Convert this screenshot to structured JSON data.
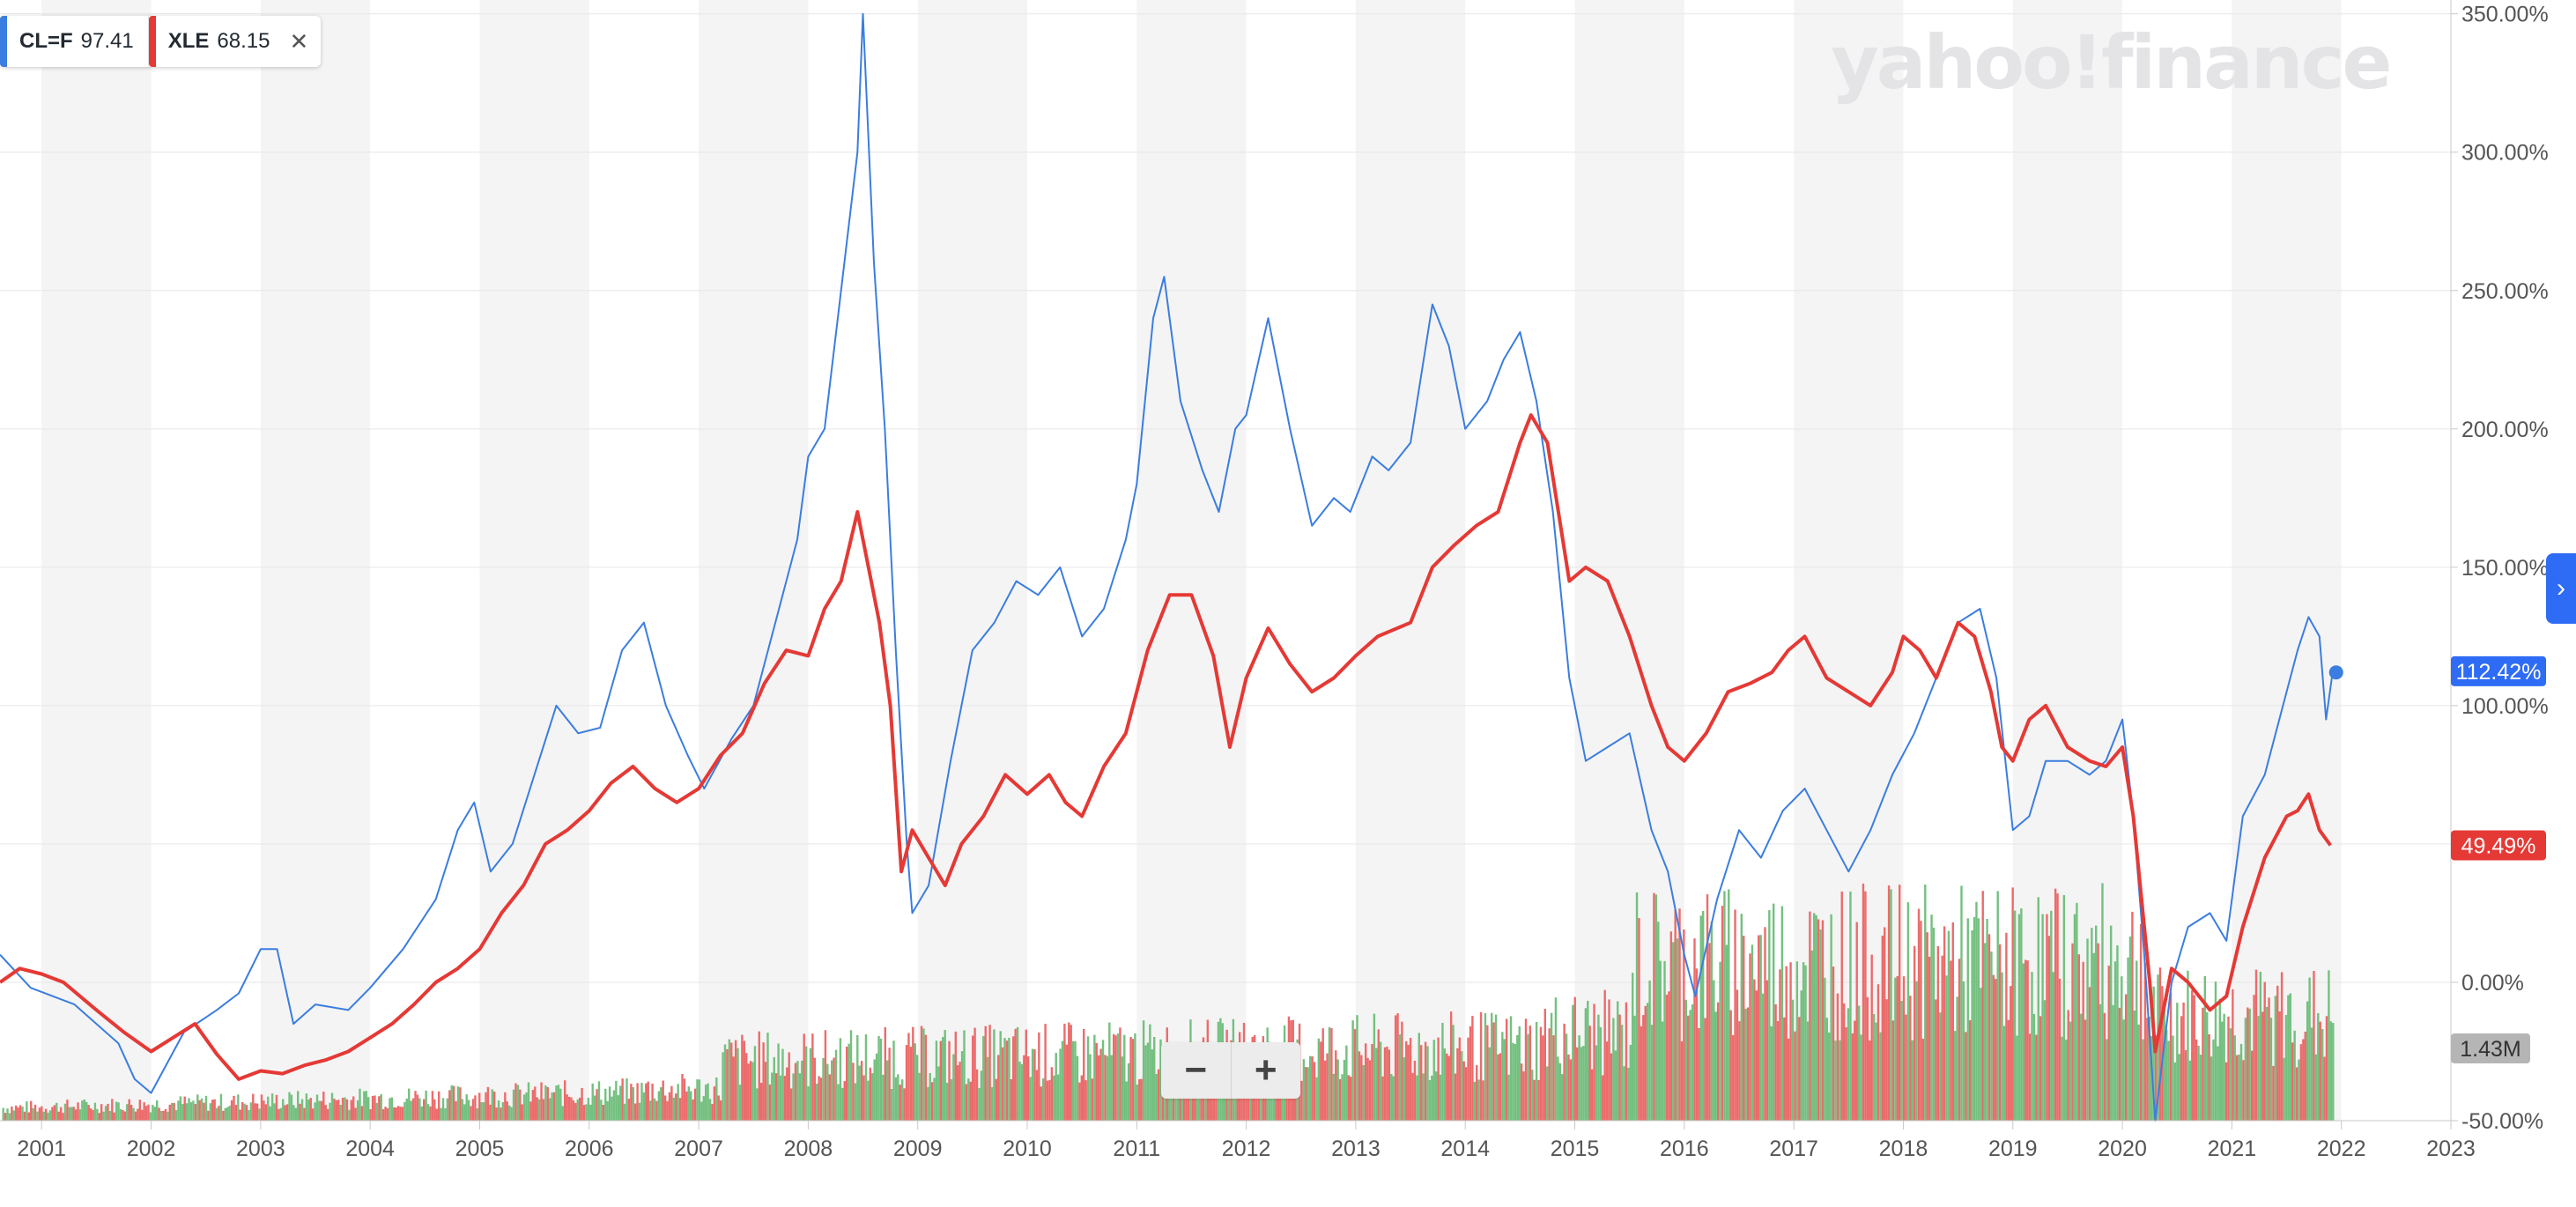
{
  "legend": [
    {
      "symbol": "CL=F",
      "value": "97.41",
      "color": "#3b7de0"
    },
    {
      "symbol": "XLE",
      "value": "68.15",
      "color": "#e53935",
      "close_icon": "close-icon"
    }
  ],
  "watermark": "yahoo!finance",
  "zoom": {
    "minus": "−",
    "plus": "+"
  },
  "expand_icon": "›",
  "colors": {
    "grid": "#e6e6e6",
    "band": "#f4f4f4",
    "axis_text": "#555555",
    "volume_up": "#74c080",
    "volume_down": "#ec6b6b"
  },
  "chart_data": {
    "type": "line",
    "x_ticks": [
      "2001",
      "2002",
      "2003",
      "2004",
      "2005",
      "2006",
      "2007",
      "2008",
      "2009",
      "2010",
      "2011",
      "2012",
      "2013",
      "2014",
      "2015",
      "2016",
      "2017",
      "2018",
      "2019",
      "2020",
      "2021",
      "2022",
      "2023"
    ],
    "y_ticks": [
      "350.00%",
      "300.00%",
      "250.00%",
      "200.00%",
      "150.00%",
      "100.00%",
      "0.00%",
      "-50.00%"
    ],
    "ylim": [
      -50,
      355
    ],
    "xlim": [
      2000.62,
      2023.0
    ],
    "series": [
      {
        "name": "CL=F",
        "color": "#3b7de0",
        "width": 2,
        "points": [
          [
            2000.62,
            10
          ],
          [
            2000.9,
            -2
          ],
          [
            2001.3,
            -8
          ],
          [
            2001.7,
            -22
          ],
          [
            2001.85,
            -35
          ],
          [
            2002.0,
            -40
          ],
          [
            2002.3,
            -18
          ],
          [
            2002.6,
            -10
          ],
          [
            2002.8,
            -4
          ],
          [
            2003.0,
            12
          ],
          [
            2003.15,
            12
          ],
          [
            2003.3,
            -15
          ],
          [
            2003.5,
            -8
          ],
          [
            2003.8,
            -10
          ],
          [
            2004.0,
            -2
          ],
          [
            2004.3,
            12
          ],
          [
            2004.6,
            30
          ],
          [
            2004.8,
            55
          ],
          [
            2004.95,
            65
          ],
          [
            2005.1,
            40
          ],
          [
            2005.3,
            50
          ],
          [
            2005.5,
            75
          ],
          [
            2005.7,
            100
          ],
          [
            2005.9,
            90
          ],
          [
            2006.1,
            92
          ],
          [
            2006.3,
            120
          ],
          [
            2006.5,
            130
          ],
          [
            2006.7,
            100
          ],
          [
            2006.9,
            82
          ],
          [
            2007.05,
            70
          ],
          [
            2007.3,
            88
          ],
          [
            2007.5,
            100
          ],
          [
            2007.7,
            130
          ],
          [
            2007.9,
            160
          ],
          [
            2008.0,
            190
          ],
          [
            2008.15,
            200
          ],
          [
            2008.3,
            250
          ],
          [
            2008.45,
            300
          ],
          [
            2008.5,
            350
          ],
          [
            2008.6,
            260
          ],
          [
            2008.7,
            200
          ],
          [
            2008.8,
            120
          ],
          [
            2008.9,
            50
          ],
          [
            2008.95,
            25
          ],
          [
            2009.1,
            35
          ],
          [
            2009.3,
            80
          ],
          [
            2009.5,
            120
          ],
          [
            2009.7,
            130
          ],
          [
            2009.9,
            145
          ],
          [
            2010.1,
            140
          ],
          [
            2010.3,
            150
          ],
          [
            2010.5,
            125
          ],
          [
            2010.7,
            135
          ],
          [
            2010.9,
            160
          ],
          [
            2011.0,
            180
          ],
          [
            2011.15,
            240
          ],
          [
            2011.25,
            255
          ],
          [
            2011.4,
            210
          ],
          [
            2011.6,
            185
          ],
          [
            2011.75,
            170
          ],
          [
            2011.9,
            200
          ],
          [
            2012.0,
            205
          ],
          [
            2012.2,
            240
          ],
          [
            2012.4,
            200
          ],
          [
            2012.6,
            165
          ],
          [
            2012.8,
            175
          ],
          [
            2012.95,
            170
          ],
          [
            2013.15,
            190
          ],
          [
            2013.3,
            185
          ],
          [
            2013.5,
            195
          ],
          [
            2013.7,
            245
          ],
          [
            2013.85,
            230
          ],
          [
            2014.0,
            200
          ],
          [
            2014.2,
            210
          ],
          [
            2014.35,
            225
          ],
          [
            2014.5,
            235
          ],
          [
            2014.65,
            210
          ],
          [
            2014.8,
            170
          ],
          [
            2014.95,
            110
          ],
          [
            2015.1,
            80
          ],
          [
            2015.3,
            85
          ],
          [
            2015.5,
            90
          ],
          [
            2015.7,
            55
          ],
          [
            2015.85,
            40
          ],
          [
            2016.0,
            10
          ],
          [
            2016.1,
            -5
          ],
          [
            2016.3,
            30
          ],
          [
            2016.5,
            55
          ],
          [
            2016.7,
            45
          ],
          [
            2016.9,
            62
          ],
          [
            2017.1,
            70
          ],
          [
            2017.3,
            55
          ],
          [
            2017.5,
            40
          ],
          [
            2017.7,
            55
          ],
          [
            2017.9,
            75
          ],
          [
            2018.1,
            90
          ],
          [
            2018.3,
            110
          ],
          [
            2018.5,
            130
          ],
          [
            2018.7,
            135
          ],
          [
            2018.85,
            110
          ],
          [
            2019.0,
            55
          ],
          [
            2019.15,
            60
          ],
          [
            2019.3,
            80
          ],
          [
            2019.5,
            80
          ],
          [
            2019.7,
            75
          ],
          [
            2019.85,
            80
          ],
          [
            2020.0,
            95
          ],
          [
            2020.1,
            60
          ],
          [
            2020.2,
            10
          ],
          [
            2020.3,
            -50
          ],
          [
            2020.45,
            0
          ],
          [
            2020.6,
            20
          ],
          [
            2020.8,
            25
          ],
          [
            2020.95,
            15
          ],
          [
            2021.1,
            60
          ],
          [
            2021.3,
            75
          ],
          [
            2021.5,
            105
          ],
          [
            2021.6,
            120
          ],
          [
            2021.7,
            132
          ],
          [
            2021.8,
            125
          ],
          [
            2021.86,
            95
          ],
          [
            2021.92,
            112
          ]
        ]
      },
      {
        "name": "XLE",
        "color": "#e53935",
        "width": 4,
        "points": [
          [
            2000.62,
            0
          ],
          [
            2000.8,
            5
          ],
          [
            2001.0,
            3
          ],
          [
            2001.2,
            0
          ],
          [
            2001.5,
            -10
          ],
          [
            2001.75,
            -18
          ],
          [
            2002.0,
            -25
          ],
          [
            2002.2,
            -20
          ],
          [
            2002.4,
            -15
          ],
          [
            2002.6,
            -26
          ],
          [
            2002.8,
            -35
          ],
          [
            2003.0,
            -32
          ],
          [
            2003.2,
            -33
          ],
          [
            2003.4,
            -30
          ],
          [
            2003.6,
            -28
          ],
          [
            2003.8,
            -25
          ],
          [
            2004.0,
            -20
          ],
          [
            2004.2,
            -15
          ],
          [
            2004.4,
            -8
          ],
          [
            2004.6,
            0
          ],
          [
            2004.8,
            5
          ],
          [
            2005.0,
            12
          ],
          [
            2005.2,
            25
          ],
          [
            2005.4,
            35
          ],
          [
            2005.6,
            50
          ],
          [
            2005.8,
            55
          ],
          [
            2006.0,
            62
          ],
          [
            2006.2,
            72
          ],
          [
            2006.4,
            78
          ],
          [
            2006.6,
            70
          ],
          [
            2006.8,
            65
          ],
          [
            2007.0,
            70
          ],
          [
            2007.2,
            82
          ],
          [
            2007.4,
            90
          ],
          [
            2007.6,
            108
          ],
          [
            2007.8,
            120
          ],
          [
            2008.0,
            118
          ],
          [
            2008.15,
            135
          ],
          [
            2008.3,
            145
          ],
          [
            2008.45,
            170
          ],
          [
            2008.55,
            150
          ],
          [
            2008.65,
            130
          ],
          [
            2008.75,
            100
          ],
          [
            2008.85,
            40
          ],
          [
            2008.95,
            55
          ],
          [
            2009.1,
            45
          ],
          [
            2009.25,
            35
          ],
          [
            2009.4,
            50
          ],
          [
            2009.6,
            60
          ],
          [
            2009.8,
            75
          ],
          [
            2010.0,
            68
          ],
          [
            2010.2,
            75
          ],
          [
            2010.35,
            65
          ],
          [
            2010.5,
            60
          ],
          [
            2010.7,
            78
          ],
          [
            2010.9,
            90
          ],
          [
            2011.1,
            120
          ],
          [
            2011.3,
            140
          ],
          [
            2011.5,
            140
          ],
          [
            2011.7,
            118
          ],
          [
            2011.85,
            85
          ],
          [
            2012.0,
            110
          ],
          [
            2012.2,
            128
          ],
          [
            2012.4,
            115
          ],
          [
            2012.6,
            105
          ],
          [
            2012.8,
            110
          ],
          [
            2013.0,
            118
          ],
          [
            2013.2,
            125
          ],
          [
            2013.5,
            130
          ],
          [
            2013.7,
            150
          ],
          [
            2013.9,
            158
          ],
          [
            2014.1,
            165
          ],
          [
            2014.3,
            170
          ],
          [
            2014.5,
            195
          ],
          [
            2014.6,
            205
          ],
          [
            2014.75,
            195
          ],
          [
            2014.85,
            170
          ],
          [
            2014.95,
            145
          ],
          [
            2015.1,
            150
          ],
          [
            2015.3,
            145
          ],
          [
            2015.5,
            125
          ],
          [
            2015.7,
            100
          ],
          [
            2015.85,
            85
          ],
          [
            2016.0,
            80
          ],
          [
            2016.2,
            90
          ],
          [
            2016.4,
            105
          ],
          [
            2016.6,
            108
          ],
          [
            2016.8,
            112
          ],
          [
            2016.95,
            120
          ],
          [
            2017.1,
            125
          ],
          [
            2017.3,
            110
          ],
          [
            2017.5,
            105
          ],
          [
            2017.7,
            100
          ],
          [
            2017.9,
            112
          ],
          [
            2018.0,
            125
          ],
          [
            2018.15,
            120
          ],
          [
            2018.3,
            110
          ],
          [
            2018.5,
            130
          ],
          [
            2018.65,
            125
          ],
          [
            2018.8,
            105
          ],
          [
            2018.9,
            85
          ],
          [
            2019.0,
            80
          ],
          [
            2019.15,
            95
          ],
          [
            2019.3,
            100
          ],
          [
            2019.5,
            85
          ],
          [
            2019.7,
            80
          ],
          [
            2019.85,
            78
          ],
          [
            2020.0,
            85
          ],
          [
            2020.1,
            60
          ],
          [
            2020.25,
            0
          ],
          [
            2020.3,
            -25
          ],
          [
            2020.45,
            5
          ],
          [
            2020.6,
            0
          ],
          [
            2020.8,
            -10
          ],
          [
            2020.95,
            -5
          ],
          [
            2021.1,
            20
          ],
          [
            2021.3,
            45
          ],
          [
            2021.5,
            60
          ],
          [
            2021.6,
            62
          ],
          [
            2021.7,
            68
          ],
          [
            2021.8,
            55
          ],
          [
            2021.9,
            49.49
          ]
        ]
      }
    ],
    "end_labels": [
      {
        "series": "CL=F",
        "text": "112.42%",
        "value": 112.42,
        "color": "#2e6cf5"
      },
      {
        "series": "XLE",
        "text": "49.49%",
        "value": 49.49,
        "color": "#e53935"
      }
    ],
    "volume": {
      "label": "1.43M",
      "label_color": "#b5b5b5"
    }
  }
}
